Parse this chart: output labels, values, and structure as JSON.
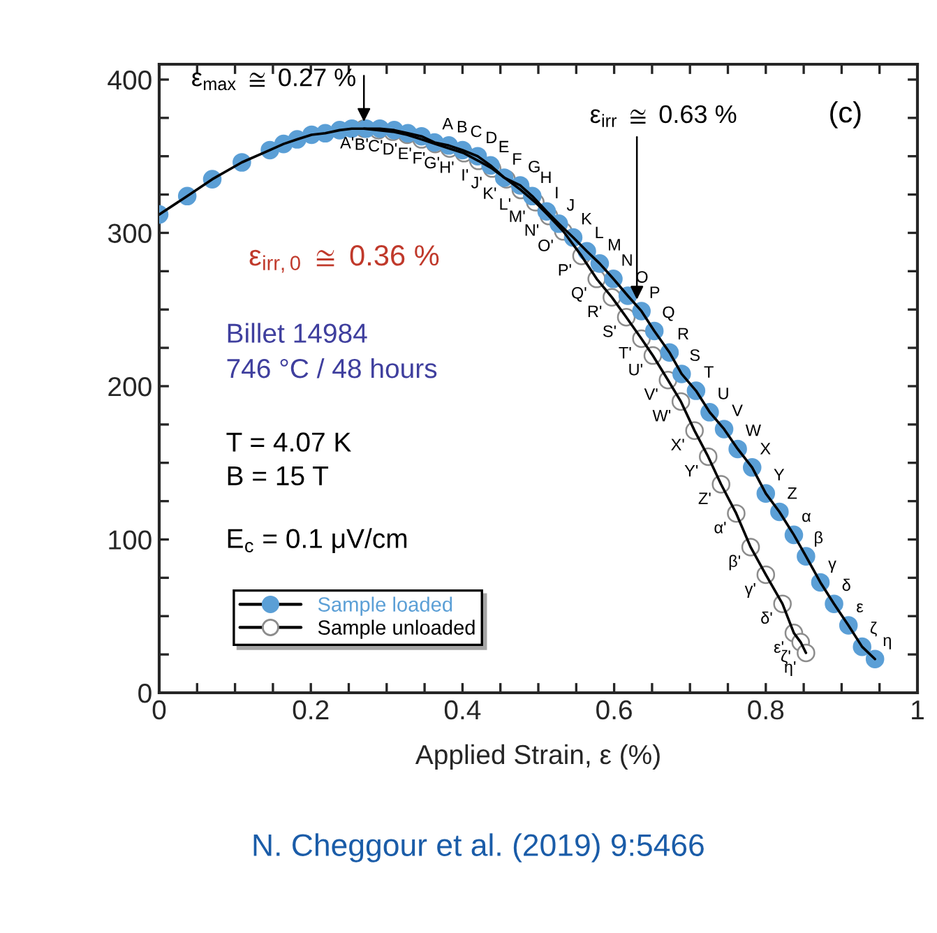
{
  "chart_data": {
    "type": "line",
    "xlabel": "Applied Strain, ε (%)",
    "xlim": [
      0,
      1
    ],
    "ylim": [
      0,
      410
    ],
    "xticks": [
      0,
      {
        "value": 0.05,
        "label": null
      },
      {
        "value": 0.1,
        "label": null
      },
      {
        "value": 0.15,
        "label": null
      },
      0.2,
      {
        "value": 0.25,
        "label": null
      },
      {
        "value": 0.3,
        "label": null
      },
      {
        "value": 0.35,
        "label": null
      },
      0.4,
      {
        "value": 0.45,
        "label": null
      },
      {
        "value": 0.5,
        "label": null
      },
      {
        "value": 0.55,
        "label": null
      },
      0.6,
      {
        "value": 0.65,
        "label": null
      },
      {
        "value": 0.7,
        "label": null
      },
      {
        "value": 0.75,
        "label": null
      },
      0.8,
      {
        "value": 0.85,
        "label": null
      },
      {
        "value": 0.9,
        "label": null
      },
      {
        "value": 0.95,
        "label": null
      },
      1
    ],
    "yticks": [
      0,
      {
        "value": 25,
        "label": null
      },
      {
        "value": 50,
        "label": null
      },
      {
        "value": 75,
        "label": null
      },
      100,
      {
        "value": 125,
        "label": null
      },
      {
        "value": 150,
        "label": null
      },
      {
        "value": 175,
        "label": null
      },
      200,
      {
        "value": 225,
        "label": null
      },
      {
        "value": 250,
        "label": null
      },
      {
        "value": 275,
        "label": null
      },
      300,
      {
        "value": 325,
        "label": null
      },
      {
        "value": 350,
        "label": null
      },
      {
        "value": 375,
        "label": null
      },
      400
    ],
    "grid": false,
    "legend": "bottom left",
    "marker": "circle",
    "line_style": "solid",
    "series": [
      {
        "name": "Sample loaded",
        "color": "#5b9fd6",
        "x": [
          0,
          0.037,
          0.07,
          0.109,
          0.146,
          0.164,
          0.182,
          0.201,
          0.219,
          0.238,
          0.254,
          0.273,
          0.291,
          0.31,
          0.328,
          0.346,
          0.363,
          0.382,
          0.4,
          0.42,
          0.437,
          0.455,
          0.476,
          0.492,
          0.511,
          0.527,
          0.546,
          0.564,
          0.581,
          0.599,
          0.618,
          0.636,
          0.653,
          0.673,
          0.689,
          0.708,
          0.726,
          0.745,
          0.763,
          0.782,
          0.8,
          0.818,
          0.837,
          0.853,
          0.872,
          0.89,
          0.909,
          0.927,
          0.944
        ],
        "values": [
          312,
          324,
          335,
          346,
          354,
          358,
          361,
          364,
          365,
          367,
          368,
          368,
          368,
          367,
          365,
          363,
          359,
          357,
          354,
          350,
          344,
          336,
          331,
          324,
          314,
          306,
          297,
          288,
          280,
          270,
          259,
          249,
          236,
          222,
          208,
          197,
          183,
          172,
          159,
          147,
          130,
          118,
          103,
          89,
          72,
          58,
          44,
          30,
          22
        ],
        "value_labels": [
          null,
          null,
          null,
          null,
          null,
          null,
          null,
          null,
          null,
          null,
          null,
          null,
          null,
          null,
          null,
          null,
          "A",
          "B",
          "C",
          "D",
          "E",
          "F",
          "G",
          "H",
          "I",
          "J",
          "K",
          "L",
          "M",
          "N",
          "O",
          "P",
          "Q",
          "R",
          "S",
          "T",
          "U",
          "V",
          "W",
          "X",
          "Y",
          "Z",
          "α",
          "β",
          "γ",
          "δ",
          "ε",
          "ζ",
          "η"
        ]
      },
      {
        "name": "Sample unloaded",
        "color": "#ffffff",
        "x": [
          0.27,
          0.289,
          0.308,
          0.327,
          0.346,
          0.364,
          0.383,
          0.402,
          0.421,
          0.439,
          0.458,
          0.477,
          0.496,
          0.514,
          0.533,
          0.557,
          0.577,
          0.597,
          0.616,
          0.636,
          0.651,
          0.671,
          0.688,
          0.706,
          0.724,
          0.741,
          0.761,
          0.78,
          0.8,
          0.822,
          0.837,
          0.846,
          0.853
        ],
        "values": [
          368,
          367,
          366,
          364,
          361,
          358,
          355,
          352,
          347,
          342,
          335,
          328,
          320,
          311,
          301,
          285,
          270,
          258,
          245,
          231,
          220,
          204,
          190,
          171,
          154,
          136,
          117,
          95,
          77,
          58,
          39,
          33,
          26
        ],
        "value_labels": [
          "A'",
          "B'",
          "C'",
          "D'",
          "E'",
          "F'",
          "G'",
          "H'",
          "I'",
          "J'",
          "K'",
          "L'",
          "M'",
          "N'",
          "O'",
          "P'",
          "Q'",
          "R'",
          "S'",
          "T'",
          "U'",
          "V'",
          "W'",
          "X'",
          "Y'",
          "Z'",
          "α'",
          "β'",
          "γ'",
          "δ'",
          "ε'",
          "ζ'",
          "η'"
        ]
      }
    ],
    "annotations": [
      {
        "text": "ε$_{max}$ ≅ 0.27 %",
        "x": 0.27,
        "y": 370
      },
      {
        "text": "ε$_{irr}$ ≅ 0.63 %",
        "x": 0.63,
        "y": 254
      },
      "ε$_{irr,0}$ ≅ 0.36 %",
      "(c)",
      "Billet 14984",
      "746 °C / 48 hours",
      "T = 4.07 K",
      "B = 15 T",
      "E$_{c}$ = 0.1 μV/cm",
      "N. Cheggour et al. (2019) 9:5466"
    ]
  }
}
